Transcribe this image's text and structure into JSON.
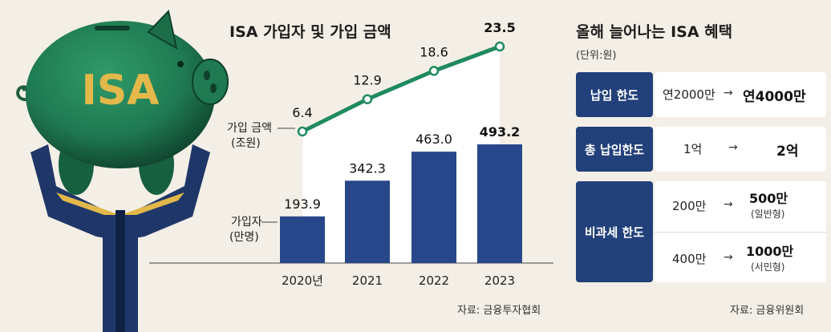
{
  "chart_title": "ISA 가입자 및 가입 금액",
  "source_left": "자료: 금융투자협회",
  "chart_data": {
    "type": "bar",
    "categories": [
      "2020년",
      "2021",
      "2022",
      "2023"
    ],
    "series": [
      {
        "name": "가입자 (만명)",
        "type": "bar",
        "values": [
          193.9,
          342.3,
          463.0,
          493.2
        ],
        "labels": [
          "193.9",
          "342.3",
          "463.0",
          "493.2"
        ],
        "color": "#27478a"
      },
      {
        "name": "가입 금액 (조원)",
        "type": "line",
        "values": [
          6.4,
          12.9,
          18.6,
          23.5
        ],
        "labels": [
          "6.4",
          "12.9",
          "18.6",
          "23.5"
        ],
        "color": "#1f8a5f"
      }
    ],
    "bar_legend": [
      "가입자",
      "(만명)"
    ],
    "line_legend": [
      "가입 금액",
      "(조원)"
    ]
  },
  "benefits": {
    "title": "올해 늘어나는 ISA 혜택",
    "unit": "(단위:원)",
    "rows": [
      {
        "label": "납입 한도",
        "from": "연2000만",
        "to": "연4000만"
      },
      {
        "label": "총 납입한도",
        "from": "1억",
        "to": "2억"
      },
      {
        "label": "비과세 한도",
        "items": [
          {
            "from": "200만",
            "to": "500만",
            "to_note": "(일반형)"
          },
          {
            "from": "400만",
            "to": "1000만",
            "to_note": "(서민형)"
          }
        ]
      }
    ],
    "arrow": "→",
    "source": "자료: 금융위원회"
  },
  "illustration": {
    "piggy_text": "ISA",
    "colors": {
      "pig": "#1f7a52",
      "pig_dark": "#0f3f2b",
      "hands": "#1f3768",
      "gold": "#e3b84a"
    }
  }
}
